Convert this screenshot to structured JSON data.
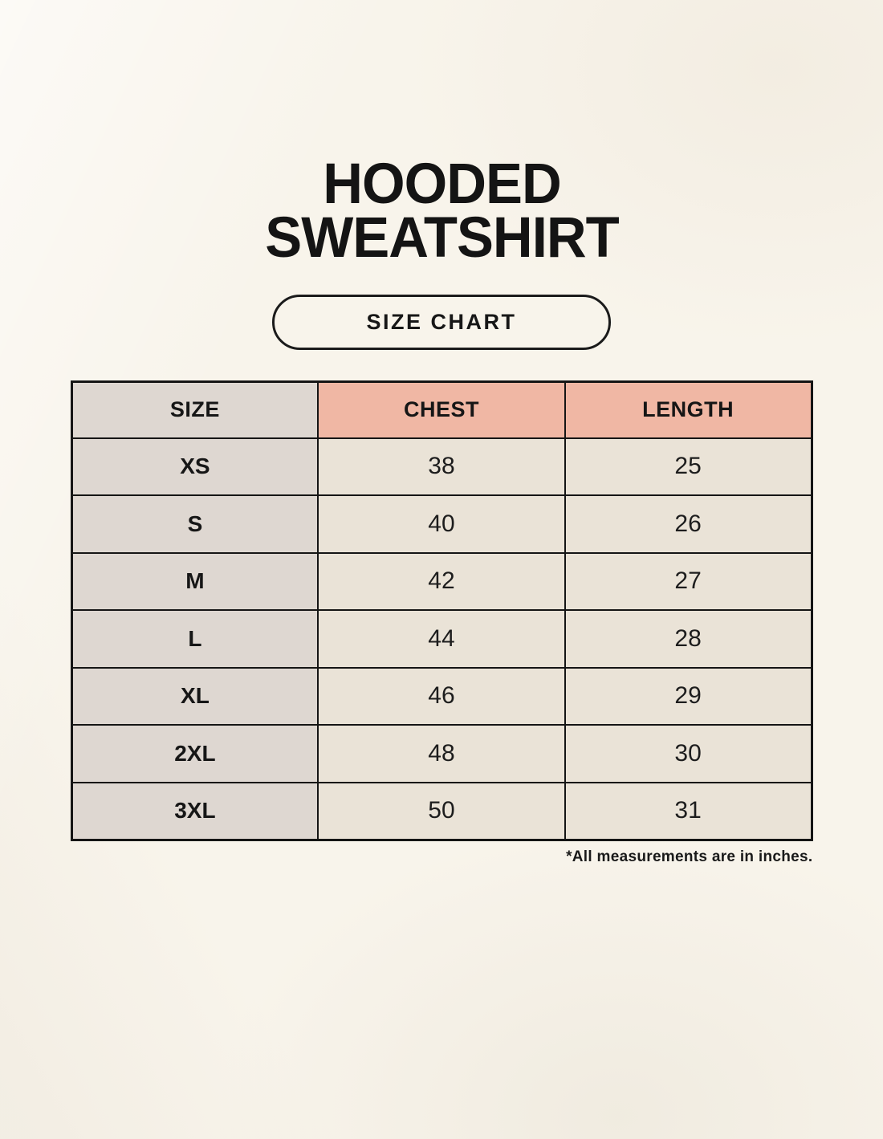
{
  "header": {
    "title_line1": "HOODED",
    "title_line2": "SWEATSHIRT",
    "badge_label": "SIZE CHART"
  },
  "chart_data": {
    "type": "table",
    "title": "HOODED SWEATSHIRT SIZE CHART",
    "columns": [
      "SIZE",
      "CHEST",
      "LENGTH"
    ],
    "rows": [
      [
        "XS",
        38,
        25
      ],
      [
        "S",
        40,
        26
      ],
      [
        "M",
        42,
        27
      ],
      [
        "L",
        44,
        28
      ],
      [
        "XL",
        46,
        29
      ],
      [
        "2XL",
        48,
        30
      ],
      [
        "3XL",
        50,
        31
      ]
    ],
    "note": "*All measurements are in inches.",
    "units": "inches",
    "layout_hints": {
      "columns_equal_width": true,
      "header_size_bg": "#ded7d1",
      "header_measure_bg": "#f0b7a4",
      "size_column_bg": "#ded7d1",
      "value_cell_bg": "#eae3d7",
      "border_color": "#151515",
      "page_background": "#f8f4eb",
      "text_color": "#161616"
    }
  }
}
